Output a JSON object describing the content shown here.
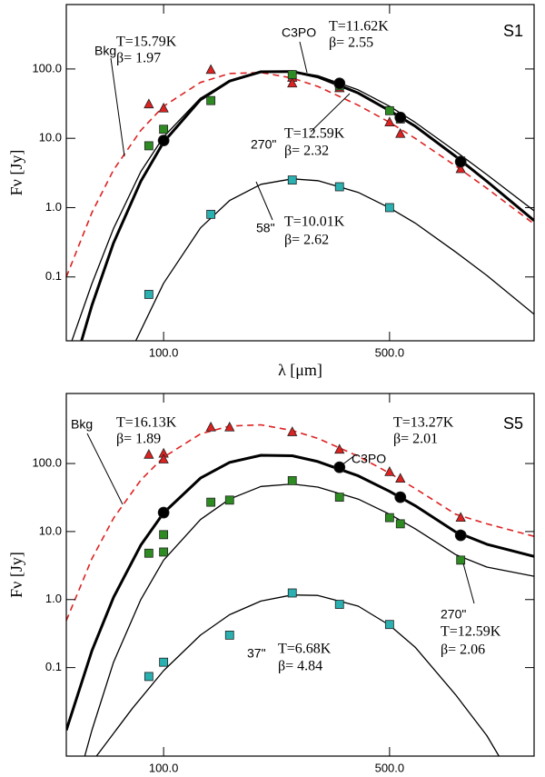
{
  "chart_data": [
    {
      "type": "line",
      "panel": "S1",
      "xlabel": "λ [μm]",
      "ylabel": "Fν [Jy]",
      "xscale": "log",
      "yscale": "log",
      "xlim": [
        50,
        1400
      ],
      "ylim": [
        0.012,
        850
      ],
      "xticks": [
        {
          "value": 100,
          "label": "100.0"
        },
        {
          "value": 500,
          "label": "500.0"
        }
      ],
      "yticks": [
        0.1,
        {
          "value": 1,
          "label": "1.0"
        },
        {
          "value": 10,
          "label": "10.0"
        },
        {
          "value": 100,
          "label": "100.0"
        }
      ],
      "annotations": [
        "S1",
        "Bkg",
        "T=15.79K",
        "β= 1.97",
        "C3PO",
        "T=11.62K",
        "β= 2.55",
        "270\"",
        "T=12.59K",
        "β= 2.32",
        "58\"",
        "T=10.01K",
        "β= 2.62"
      ],
      "series": [
        {
          "kind": "curve",
          "color": "#dd2222",
          "dash": true,
          "width": 1.6,
          "x": [
            50,
            60,
            70,
            85,
            100,
            130,
            160,
            200,
            250,
            300,
            400,
            500,
            600,
            800,
            1000,
            1400
          ],
          "values": [
            0.1,
            0.85,
            3.5,
            13,
            29,
            64,
            86,
            89,
            74,
            56,
            30,
            17,
            10,
            4.0,
            1.9,
            0.58
          ]
        },
        {
          "kind": "curve",
          "color": "#000000",
          "width": 1.3,
          "x": [
            52,
            60,
            70,
            85,
            100,
            130,
            160,
            200,
            250,
            300,
            400,
            500,
            600,
            800,
            1000,
            1400
          ],
          "values": [
            0.012,
            0.08,
            0.5,
            3.3,
            10.5,
            38,
            68,
            90,
            92,
            80,
            50,
            29,
            17,
            6.5,
            3.0,
            0.9
          ]
        },
        {
          "kind": "curve",
          "color": "#000000",
          "width": 3,
          "x": [
            55,
            60,
            70,
            85,
            100,
            130,
            160,
            200,
            250,
            300,
            400,
            500,
            600,
            800,
            1000,
            1400
          ],
          "values": [
            0.0097,
            0.039,
            0.31,
            2.4,
            8.8,
            36,
            67,
            91,
            92,
            77,
            45,
            25,
            15,
            5.5,
            2.4,
            0.65
          ]
        },
        {
          "kind": "curve",
          "color": "#000000",
          "width": 1.3,
          "x": [
            82,
            100,
            130,
            160,
            200,
            250,
            300,
            400,
            500,
            600,
            800,
            1000,
            1400
          ],
          "values": [
            0.012,
            0.081,
            0.51,
            1.27,
            2.17,
            2.6,
            2.45,
            1.66,
            0.99,
            0.6,
            0.23,
            0.105,
            0.029
          ]
        },
        {
          "kind": "points",
          "marker": "triangle",
          "color": "#dd2222",
          "x": [
            90,
            100,
            140,
            250,
            250,
            350,
            500,
            540,
            830
          ],
          "values": [
            31,
            27,
            97,
            75,
            62,
            53,
            17,
            11.6,
            3.6
          ]
        },
        {
          "kind": "points",
          "marker": "square",
          "color": "#2e8b22",
          "x": [
            90,
            100,
            140,
            250,
            350,
            500,
            540,
            830
          ],
          "values": [
            7.8,
            13.5,
            35,
            83,
            57,
            25,
            19,
            4.7
          ]
        },
        {
          "kind": "points",
          "marker": "circle",
          "color": "#000000",
          "x": [
            100,
            350,
            540,
            830
          ],
          "values": [
            9.3,
            62,
            20,
            4.6
          ]
        },
        {
          "kind": "points",
          "marker": "square",
          "color": "#2ab0b0",
          "x": [
            90,
            140,
            250,
            350,
            500
          ],
          "values": [
            0.056,
            0.8,
            2.5,
            2.0,
            1.0
          ]
        }
      ]
    },
    {
      "type": "line",
      "panel": "S5",
      "xlabel": "λ [μm]",
      "ylabel": "Fν [Jy]",
      "xscale": "log",
      "yscale": "log",
      "xlim": [
        50,
        1400
      ],
      "ylim": [
        0.005,
        1070
      ],
      "xticks": [
        {
          "value": 100,
          "label": "100.0"
        },
        {
          "value": 500,
          "label": "500.0"
        }
      ],
      "yticks": [
        0.1,
        {
          "value": 1,
          "label": "1.0"
        },
        {
          "value": 10,
          "label": "10.0"
        },
        {
          "value": 100,
          "label": "100.0"
        }
      ],
      "annotations": [
        "S5",
        "Bkg",
        "T=16.13K",
        "β= 1.89",
        "C3PO",
        "T=13.27K",
        "β= 2.01",
        "270\"",
        "T=12.59K",
        "β= 2.06",
        "37\"",
        "T=6.68K",
        "β= 4.84"
      ],
      "series": [
        {
          "kind": "curve",
          "color": "#dd2222",
          "dash": true,
          "width": 1.6,
          "x": [
            50,
            60,
            70,
            85,
            100,
            130,
            160,
            200,
            250,
            300,
            400,
            500,
            600,
            800,
            1000,
            1400
          ],
          "values": [
            0.49,
            4.0,
            15.7,
            57,
            124,
            272,
            356,
            370,
            306,
            234,
            128,
            72,
            43,
            18,
            13,
            8.5
          ]
        },
        {
          "kind": "curve",
          "color": "#000000",
          "width": 3,
          "x": [
            50,
            60,
            70,
            85,
            100,
            130,
            160,
            200,
            250,
            300,
            400,
            500,
            600,
            800,
            1000,
            1400
          ],
          "values": [
            0.012,
            0.177,
            1.08,
            6.3,
            18.8,
            61,
            104,
            132,
            130,
            107,
            66,
            39,
            24,
            9.9,
            6.5,
            4.3
          ]
        },
        {
          "kind": "curve",
          "color": "#000000",
          "width": 1.3,
          "x": [
            57,
            60,
            70,
            85,
            100,
            130,
            160,
            200,
            250,
            300,
            400,
            500,
            600,
            800,
            1000,
            1400
          ],
          "values": [
            0.005,
            0.012,
            0.12,
            1.0,
            3.8,
            15,
            30,
            46,
            50,
            45,
            30,
            18,
            11,
            4.6,
            3.0,
            2.2
          ]
        },
        {
          "kind": "curve",
          "color": "#000000",
          "width": 1.3,
          "x": [
            62,
            80,
            100,
            130,
            160,
            200,
            250,
            300,
            400,
            500,
            600,
            800,
            1000,
            1090
          ],
          "values": [
            0.005,
            0.025,
            0.09,
            0.3,
            0.6,
            0.95,
            1.17,
            1.15,
            0.8,
            0.42,
            0.2,
            0.04,
            0.01,
            0.005
          ]
        },
        {
          "kind": "points",
          "marker": "triangle",
          "color": "#dd2222",
          "x": [
            90,
            100,
            100,
            140,
            160,
            250,
            350,
            500,
            540,
            830
          ],
          "values": [
            135,
            140,
            115,
            340,
            340,
            290,
            160,
            75,
            60,
            16
          ]
        },
        {
          "kind": "points",
          "marker": "square",
          "color": "#2e8b22",
          "x": [
            90,
            100,
            100,
            140,
            160,
            250,
            350,
            500,
            540,
            830
          ],
          "values": [
            4.8,
            9,
            5,
            27,
            29,
            56,
            32,
            16,
            13,
            3.8
          ]
        },
        {
          "kind": "points",
          "marker": "circle",
          "color": "#000000",
          "x": [
            100,
            350,
            540,
            830
          ],
          "values": [
            19,
            88,
            32,
            8.8
          ]
        },
        {
          "kind": "points",
          "marker": "square",
          "color": "#2ab0b0",
          "x": [
            90,
            100,
            160,
            250,
            350,
            500
          ],
          "values": [
            0.074,
            0.12,
            0.3,
            1.25,
            0.85,
            0.43
          ]
        }
      ]
    }
  ]
}
